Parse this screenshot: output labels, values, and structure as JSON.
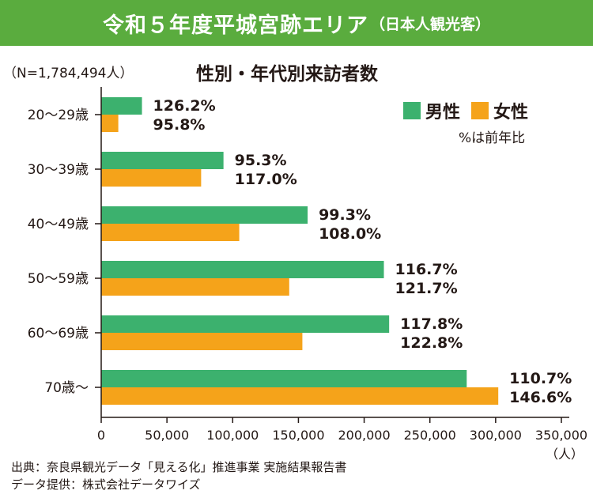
{
  "banner": {
    "title": "令和５年度平城宮跡エリア",
    "subtitle": "（日本人観光客）"
  },
  "sample_label": "（N=1,784,494人）",
  "colors": {
    "male": "#3cb16e",
    "female": "#f5a31a",
    "banner": "#5aac3e"
  },
  "legend": {
    "male": "男性",
    "female": "女性",
    "note": "%は前年比"
  },
  "source_lines": [
    "出典：奈良県観光データ「見える化」推進事業 実施結果報告書",
    "データ提供：株式会社データワイズ"
  ],
  "chart_data": {
    "type": "bar",
    "orientation": "horizontal",
    "title": "性別・年代別来訪者数",
    "categories": [
      "20〜29歳",
      "30〜39歳",
      "40〜49歳",
      "50〜59歳",
      "60〜69歳",
      "70歳〜"
    ],
    "series": [
      {
        "name": "男性",
        "values": [
          31000,
          93000,
          157000,
          215000,
          219000,
          278000
        ],
        "yoy_labels": [
          "126.2%",
          "95.3%",
          "99.3%",
          "116.7%",
          "117.8%",
          "110.7%"
        ]
      },
      {
        "name": "女性",
        "values": [
          13000,
          76000,
          105000,
          143000,
          153000,
          302000
        ],
        "yoy_labels": [
          "95.8%",
          "117.0%",
          "108.0%",
          "121.7%",
          "122.8%",
          "146.6%"
        ]
      }
    ],
    "xlim": [
      0,
      350000
    ],
    "xticks": [
      "0",
      "50,000",
      "100,000",
      "150,000",
      "200,000",
      "250,000",
      "300,000",
      "350,000"
    ],
    "xunit": "（人）",
    "legend_position": "top-right"
  }
}
